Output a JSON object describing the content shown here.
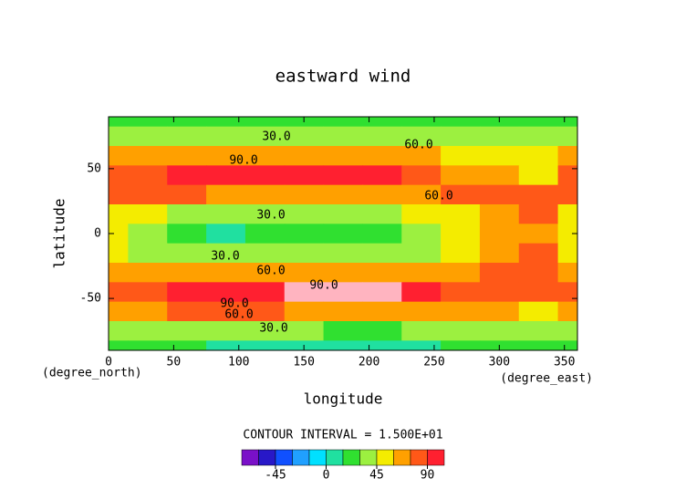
{
  "chart_data": {
    "type": "contour",
    "title": "eastward wind",
    "xlabel": "longitude",
    "ylabel": "latitude",
    "xunit": "(degree_east)",
    "yunit": "(degree_north)",
    "interval_text": "CONTOUR INTERVAL = 1.500E+01",
    "xlim": [
      0,
      360
    ],
    "ylim": [
      -90,
      90
    ],
    "xticks": [
      0,
      50,
      100,
      150,
      200,
      250,
      300,
      350
    ],
    "yticks": [
      -50,
      0,
      50
    ],
    "x": [
      0,
      30,
      60,
      90,
      120,
      150,
      180,
      210,
      240,
      270,
      300,
      330,
      360
    ],
    "y": [
      90,
      75,
      60,
      45,
      30,
      15,
      0,
      -15,
      -30,
      -45,
      -60,
      -75,
      -90
    ],
    "z": [
      [
        15,
        15,
        18,
        15,
        15,
        15,
        15,
        15,
        15,
        18,
        20,
        20,
        15
      ],
      [
        35,
        35,
        32,
        32,
        30,
        30,
        32,
        35,
        38,
        40,
        40,
        38,
        35
      ],
      [
        60,
        62,
        65,
        68,
        65,
        62,
        62,
        65,
        65,
        55,
        50,
        48,
        60
      ],
      [
        75,
        80,
        95,
        100,
        100,
        100,
        100,
        100,
        85,
        70,
        60,
        50,
        75
      ],
      [
        85,
        80,
        75,
        70,
        65,
        65,
        65,
        65,
        70,
        78,
        82,
        85,
        85
      ],
      [
        55,
        45,
        40,
        35,
        35,
        35,
        38,
        40,
        45,
        55,
        70,
        80,
        55
      ],
      [
        50,
        40,
        28,
        14,
        25,
        28,
        28,
        28,
        40,
        55,
        70,
        68,
        50
      ],
      [
        50,
        42,
        38,
        35,
        32,
        32,
        33,
        36,
        42,
        55,
        70,
        78,
        50
      ],
      [
        70,
        65,
        60,
        60,
        62,
        65,
        65,
        65,
        65,
        70,
        80,
        80,
        70
      ],
      [
        85,
        85,
        90,
        100,
        100,
        110,
        110,
        110,
        95,
        85,
        80,
        75,
        85
      ],
      [
        70,
        70,
        80,
        85,
        75,
        70,
        65,
        65,
        62,
        60,
        60,
        58,
        70
      ],
      [
        30,
        35,
        35,
        35,
        32,
        30,
        28,
        28,
        30,
        35,
        38,
        40,
        30
      ],
      [
        20,
        18,
        15,
        12,
        10,
        8,
        8,
        10,
        12,
        18,
        25,
        20,
        20
      ]
    ],
    "contour_labels": [
      {
        "value": 30,
        "label": "30.0"
      },
      {
        "value": 30,
        "label": "30.0"
      },
      {
        "value": 30,
        "label": "30.0"
      },
      {
        "value": 30,
        "label": "30.0"
      },
      {
        "value": 60,
        "label": "60.0"
      },
      {
        "value": 60,
        "label": "60.0"
      },
      {
        "value": 60,
        "label": "60.0"
      },
      {
        "value": 60,
        "label": "60.0"
      },
      {
        "value": 90,
        "label": "90.0"
      },
      {
        "value": 90,
        "label": "90.0"
      },
      {
        "value": 90,
        "label": "90.0"
      }
    ],
    "colorbar": {
      "levels": [
        -75,
        -60,
        -45,
        -30,
        -15,
        0,
        15,
        30,
        45,
        60,
        75,
        90,
        105
      ],
      "colors": [
        "#7a10c8",
        "#2818c8",
        "#1050ff",
        "#20a0ff",
        "#00e0ff",
        "#20e0a0",
        "#30e030",
        "#9cf040",
        "#f4ec00",
        "#ffa000",
        "#ff5818",
        "#ff2030"
      ],
      "above_color": "#ffb4c0",
      "ticks": [
        -45,
        0,
        45,
        90
      ]
    }
  }
}
